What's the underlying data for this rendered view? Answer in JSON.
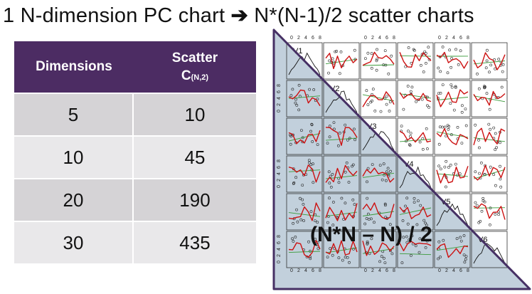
{
  "title": {
    "left": "1 N-dimension PC chart",
    "arrow": "➔",
    "right": "N*(N-1)/2 scatter charts"
  },
  "table": {
    "header_dimensions": "Dimensions",
    "header_scatter": "Scatter",
    "header_combination": "C",
    "header_combination_sub": "(N,2)",
    "rows": [
      {
        "dimensions": "5",
        "scatter": "10"
      },
      {
        "dimensions": "10",
        "scatter": "45"
      },
      {
        "dimensions": "20",
        "scatter": "190"
      },
      {
        "dimensions": "30",
        "scatter": "435"
      }
    ]
  },
  "matrix": {
    "variables": [
      "V1",
      "V2",
      "V3",
      "V4",
      "V5",
      "V6"
    ],
    "tick_labels": [
      "0",
      "2",
      "4",
      "6",
      "8"
    ],
    "colors": {
      "triangle_fill": "#c2d0dc",
      "triangle_border": "#463064",
      "smooth": "#cc1111",
      "fit": "#3a9a3a",
      "point": "#222222"
    }
  },
  "formula": "(N*N – N) / 2"
}
